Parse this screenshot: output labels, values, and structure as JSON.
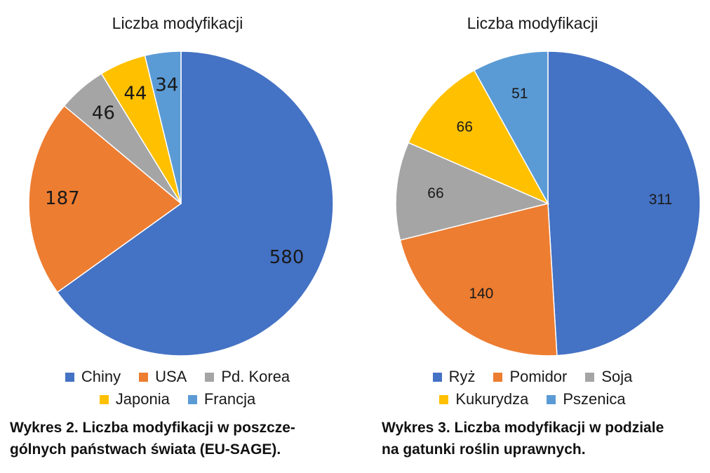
{
  "chart_data": [
    {
      "type": "pie",
      "title": "Liczba modyfikacji",
      "categories": [
        "Chiny",
        "USA",
        "Pd. Korea",
        "Japonia",
        "Francja"
      ],
      "values": [
        580,
        187,
        46,
        44,
        34
      ],
      "colors": [
        "#4472C4",
        "#ED7D31",
        "#A5A5A5",
        "#FFC000",
        "#5B9BD5"
      ],
      "legend_position": "bottom",
      "caption_lines": [
        "Wykres 2. Liczba modyfikacji w poszcze-",
        "gólnych państwach świata (EU-SAGE)."
      ]
    },
    {
      "type": "pie",
      "title": "Liczba modyfikacji",
      "categories": [
        "Ryż",
        "Pomidor",
        "Soja",
        "Kukurydza",
        "Pszenica"
      ],
      "values": [
        311,
        140,
        66,
        66,
        51
      ],
      "colors": [
        "#4472C4",
        "#ED7D31",
        "#A5A5A5",
        "#FFC000",
        "#5B9BD5"
      ],
      "legend_position": "bottom",
      "caption_lines": [
        "Wykres 3. Liczba modyfikacji w podziale",
        "na gatunki roślin uprawnych."
      ]
    }
  ]
}
